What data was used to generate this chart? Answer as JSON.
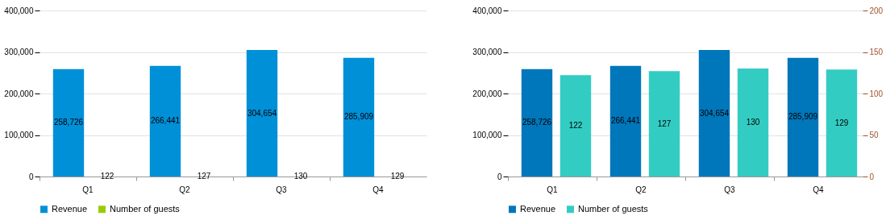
{
  "chart_data": [
    {
      "type": "bar",
      "categories": [
        "Q1",
        "Q2",
        "Q3",
        "Q4"
      ],
      "series": [
        {
          "name": "Revenue",
          "color": "#0090d8",
          "values": [
            258726,
            266441,
            304654,
            285909
          ],
          "value_labels": [
            "258,726",
            "266,441",
            "304,654",
            "285,909"
          ]
        },
        {
          "name": "Number of guests",
          "color": "#99cc00",
          "values": [
            122,
            127,
            130,
            129
          ],
          "value_labels": [
            "122",
            "127",
            "130",
            "129"
          ]
        }
      ],
      "ylim": [
        0,
        400000
      ],
      "yticks": [
        0,
        {
          "value": 100000,
          "label": "100,000"
        },
        {
          "value": 200000,
          "label": "200,000"
        },
        {
          "value": 300000,
          "label": "300,000"
        },
        {
          "value": 400000,
          "label": "400,000"
        }
      ],
      "grid": "y",
      "legend": "bottom"
    },
    {
      "type": "bar",
      "categories": [
        "Q1",
        "Q2",
        "Q3",
        "Q4"
      ],
      "series": [
        {
          "name": "Revenue",
          "color": "#0077bb",
          "values": [
            258726,
            266441,
            304654,
            285909
          ],
          "value_labels": [
            "258,726",
            "266,441",
            "304,654",
            "285,909"
          ]
        },
        {
          "name": "Number of guests",
          "color": "#33ccc3",
          "values": [
            122,
            127,
            130,
            129
          ],
          "axis": "y2",
          "value_labels": [
            "122",
            "127",
            "130",
            "129"
          ]
        }
      ],
      "ylim": [
        0,
        400000
      ],
      "yticks": [
        0,
        {
          "value": 100000,
          "label": "100,000"
        },
        {
          "value": 200000,
          "label": "200,000"
        },
        {
          "value": 300000,
          "label": "300,000"
        },
        {
          "value": 400000,
          "label": "400,000"
        }
      ],
      "y2lim": [
        0,
        200
      ],
      "y2ticks": [
        0,
        50,
        100,
        150,
        200
      ],
      "grid": "y",
      "legend": "bottom"
    }
  ]
}
